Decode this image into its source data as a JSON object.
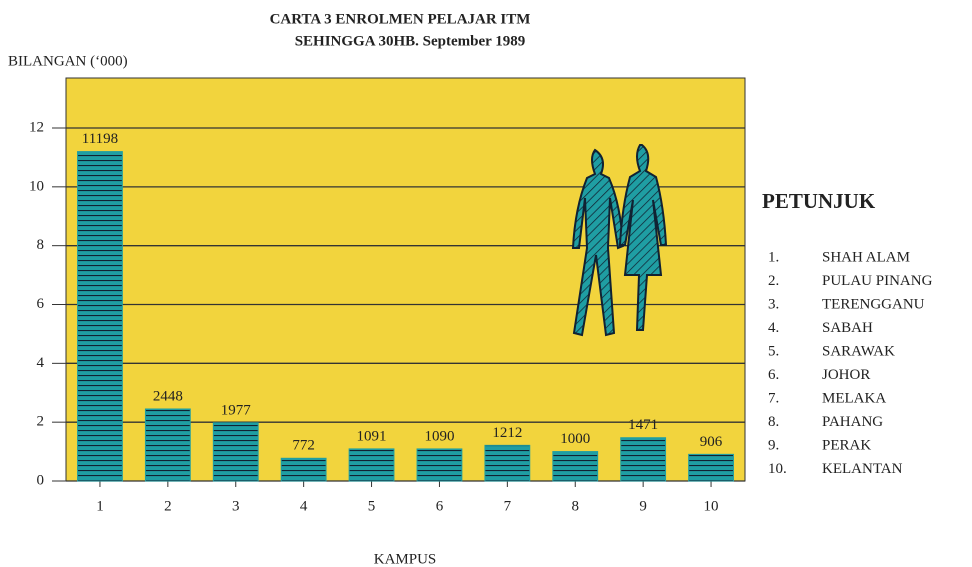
{
  "chart_data": {
    "type": "bar",
    "title": "CARTA 3 ENROLMEN PELAJAR ITM",
    "subtitle": "SEHINGGA 30HB. September 1989",
    "y_label": "BILANGAN (‘000)",
    "x_label": "KAMPUS",
    "categories": [
      "1",
      "2",
      "3",
      "4",
      "5",
      "6",
      "7",
      "8",
      "9",
      "10"
    ],
    "values": [
      11.198,
      2.448,
      1.977,
      0.772,
      1.091,
      1.09,
      1.212,
      1.0,
      1.471,
      0.906
    ],
    "value_labels": [
      "11198",
      "2448",
      "1977",
      "772",
      "1091",
      "1090",
      "1212",
      "1000",
      "1471",
      "906"
    ],
    "color": "#1f9ea3",
    "ylim": [
      0,
      13.7
    ],
    "yticks": [
      0,
      2,
      4,
      6,
      8,
      10,
      12
    ],
    "grid": true,
    "legend": {
      "title": "PETUNJUK",
      "items": [
        {
          "number": "1.",
          "name": "SHAH ALAM"
        },
        {
          "number": "2.",
          "name": "PULAU PINANG"
        },
        {
          "number": "3.",
          "name": "TERENGGANU"
        },
        {
          "number": "4.",
          "name": "SABAH"
        },
        {
          "number": "5.",
          "name": "SARAWAK"
        },
        {
          "number": "6.",
          "name": "JOHOR"
        },
        {
          "number": "7.",
          "name": "MELAKA"
        },
        {
          "number": "8.",
          "name": "PAHANG"
        },
        {
          "number": "9.",
          "name": "PERAK"
        },
        {
          "number": "10.",
          "name": "KELANTAN"
        }
      ]
    }
  }
}
